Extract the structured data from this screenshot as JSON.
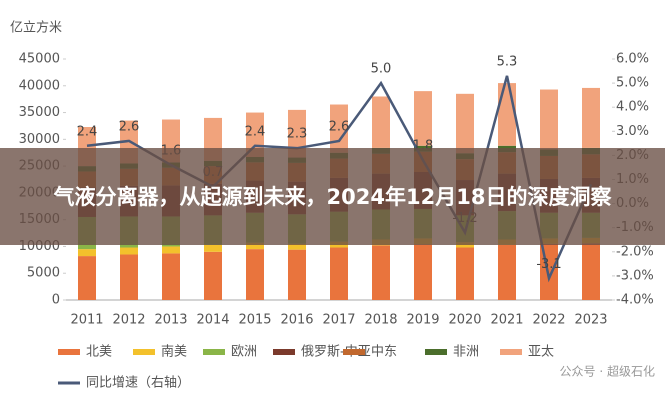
{
  "chart_data": {
    "type": "bar",
    "stacked": true,
    "unit_label": "亿立方米",
    "categories": [
      "2011",
      "2012",
      "2013",
      "2014",
      "2015",
      "2016",
      "2017",
      "2018",
      "2019",
      "2020",
      "2021",
      "2022",
      "2023"
    ],
    "series": [
      {
        "name": "北美",
        "color": "#e9743d",
        "values": [
          8200,
          8500,
          8700,
          9000,
          9500,
          9400,
          9800,
          10200,
          10400,
          9800,
          10300,
          10500,
          10600
        ]
      },
      {
        "name": "南美",
        "color": "#f3c12c",
        "values": [
          1300,
          1300,
          1300,
          1300,
          1200,
          1100,
          1100,
          1100,
          1100,
          1000,
          1000,
          1000,
          1000
        ]
      },
      {
        "name": "欧洲",
        "color": "#8ab548",
        "values": [
          6000,
          5800,
          5600,
          5500,
          5600,
          5500,
          5600,
          5600,
          5500,
          5000,
          5300,
          4800,
          4700
        ]
      },
      {
        "name": "俄罗斯-中亚",
        "color": "#7b3a2c",
        "values": [
          5500,
          5700,
          5800,
          5900,
          6000,
          6100,
          6300,
          6700,
          6900,
          6600,
          7000,
          6300,
          6500
        ]
      },
      {
        "name": "中东",
        "color": "#c1682e",
        "values": [
          3000,
          3200,
          3300,
          3300,
          3400,
          3500,
          3600,
          3700,
          3800,
          3900,
          4000,
          4300,
          4400
        ]
      },
      {
        "name": "非洲",
        "color": "#4b6e2c",
        "values": [
          1000,
          1000,
          1000,
          1000,
          1000,
          1000,
          1100,
          1100,
          1100,
          1100,
          1200,
          1200,
          1200
        ]
      },
      {
        "name": "亚太",
        "color": "#f1a37c",
        "values": [
          7300,
          8000,
          8000,
          8000,
          8300,
          8900,
          9000,
          9600,
          10200,
          11100,
          11700,
          11200,
          11200
        ]
      },
      {
        "name": "同比增速（右轴）",
        "color": "#4a5a78",
        "type": "line",
        "axis": "y2",
        "values": [
          2.4,
          2.6,
          1.6,
          0.7,
          2.4,
          2.3,
          2.6,
          5.0,
          1.8,
          -1.2,
          5.3,
          -3.1,
          0.8
        ],
        "value_labels": [
          "2.4",
          "2.6",
          "1.6",
          "0.7",
          "2.4",
          "2.3",
          "2.6",
          "5.0",
          "1.8",
          "-1.2",
          "5.3",
          "-3.1",
          null
        ]
      }
    ],
    "ylim": [
      0,
      45000
    ],
    "yticks": [
      0,
      5000,
      10000,
      15000,
      20000,
      25000,
      30000,
      35000,
      40000,
      45000
    ],
    "y2lim": [
      -4,
      6
    ],
    "y2ticks": [
      {
        "value": -4,
        "label": "-4.0%"
      },
      {
        "value": -3,
        "label": "-3.0%"
      },
      {
        "value": -2,
        "label": "-2.0%"
      },
      {
        "value": -1,
        "label": "-1.0%"
      },
      {
        "value": 0,
        "label": "0.0%"
      },
      {
        "value": 1,
        "label": "1.0%"
      },
      {
        "value": 2,
        "label": "2.0%"
      },
      {
        "value": 3,
        "label": "3.0%"
      },
      {
        "value": 4,
        "label": "4.0%"
      },
      {
        "value": 5,
        "label": "5.0%"
      },
      {
        "value": 6,
        "label": "6.0%"
      }
    ],
    "grid": false,
    "legend_position": "bottom"
  },
  "overlay": {
    "title": "气液分离器，从起源到未来，2024年12月18日的深度洞察"
  },
  "watermark": "公众号 · 超级石化"
}
